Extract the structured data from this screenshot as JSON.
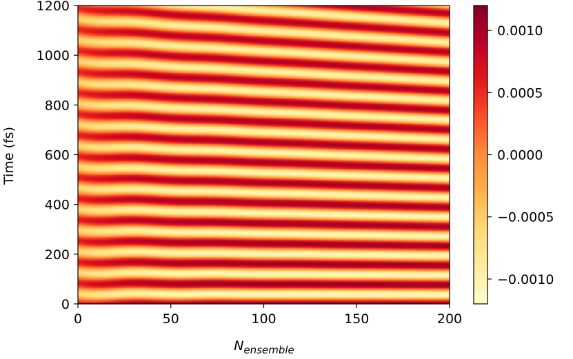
{
  "chart_data": {
    "type": "heatmap",
    "title": "",
    "xlabel": "N",
    "xlabel_subscript": "ensemble",
    "ylabel": "Time (fs)",
    "xlim": [
      0,
      200
    ],
    "ylim": [
      0,
      1200
    ],
    "x_ticks": [
      0,
      50,
      100,
      150,
      200
    ],
    "x_tick_labels": [
      "0",
      "50",
      "100",
      "150",
      "200"
    ],
    "y_ticks": [
      0,
      200,
      400,
      600,
      800,
      1000,
      1200
    ],
    "y_tick_labels": [
      "0",
      "200",
      "400",
      "600",
      "800",
      "1000",
      "1200"
    ],
    "colorbar": {
      "vmin": -0.0012,
      "vmax": 0.0012,
      "ticks": [
        0.001,
        0.0005,
        0.0,
        -0.0005,
        -0.001
      ],
      "tick_labels": [
        "0.0010",
        "0.0005",
        "0.0000",
        "−0.0005",
        "−0.0010"
      ],
      "colormap": "YlOrRd",
      "colors": [
        "#ffffcc",
        "#ffeda0",
        "#fed976",
        "#feb24c",
        "#fd8d3c",
        "#fc4e2a",
        "#e31a1c",
        "#bd0026",
        "#800026"
      ]
    },
    "grid": false,
    "description_fields": {
      "band_period_fs_at_N0": 85,
      "band_period_fs_at_N200": 78,
      "amplitude_peak": 0.0011
    }
  }
}
